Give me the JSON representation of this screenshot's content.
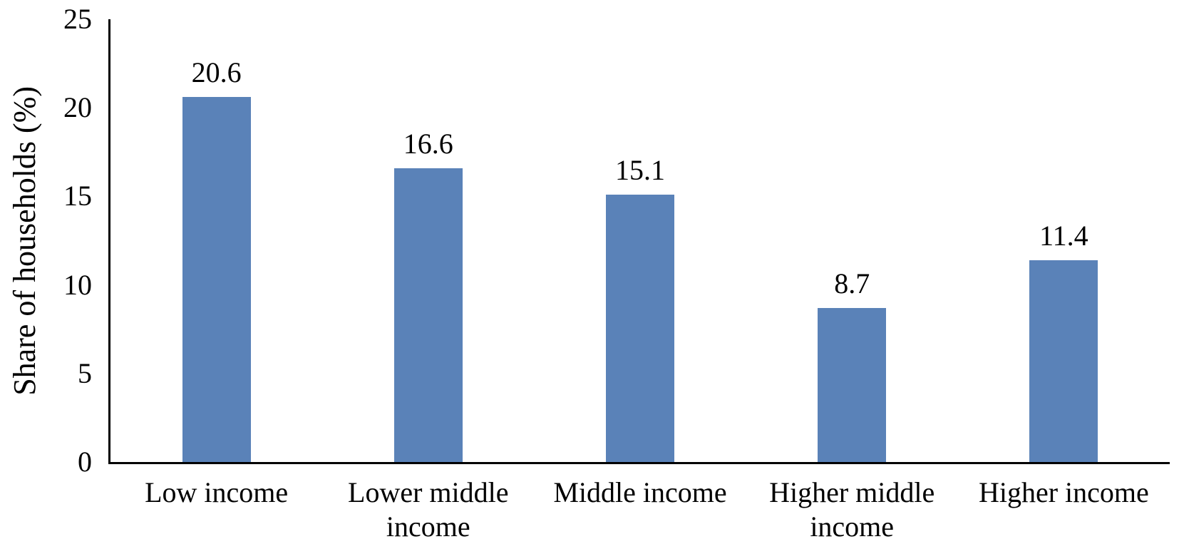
{
  "chart_data": {
    "type": "bar",
    "categories": [
      "Low income",
      "Lower middle income",
      "Middle income",
      "Higher middle income",
      "Higher income"
    ],
    "values": [
      20.6,
      16.6,
      15.1,
      8.7,
      11.4
    ],
    "value_labels": [
      "20.6",
      "16.6",
      "15.1",
      "8.7",
      "11.4"
    ],
    "title": "",
    "xlabel": "",
    "ylabel": "Share of households (%)",
    "ylim": [
      0,
      25
    ],
    "yticks": [
      0,
      5,
      10,
      15,
      20,
      25
    ],
    "grid": false,
    "legend": false,
    "bar_color": "#5A82B8",
    "axis_color": "#000000",
    "text_color": "#000000",
    "background": "#FFFFFF"
  }
}
